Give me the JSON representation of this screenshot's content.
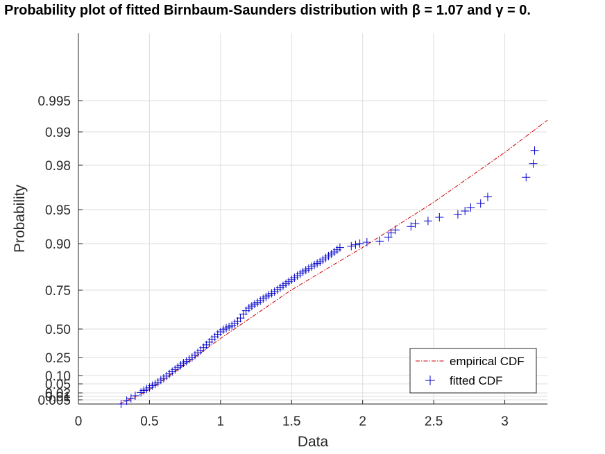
{
  "title": "Probability plot of fitted Birnbaum-Saunders distribution with β = 1.07 and γ = 0.",
  "chart_data": {
    "type": "scatter",
    "title": "Probability plot of fitted Birnbaum-Saunders distribution with β = 1.07 and γ = 0.",
    "xlabel": "Data",
    "ylabel": "Probability",
    "xlim": [
      0,
      3.3
    ],
    "x_ticks": [
      "0",
      "0.5",
      "1",
      "1.5",
      "2",
      "2.5",
      "3"
    ],
    "x_tick_values": [
      0,
      0.5,
      1,
      1.5,
      2,
      2.5,
      3
    ],
    "y_scale": "birnbaum-saunders probability",
    "y_ticks": [
      "0.005",
      "0.01",
      "0.02",
      "0.05",
      "0.10",
      "0.25",
      "0.50",
      "0.75",
      "0.90",
      "0.95",
      "0.98",
      "0.99",
      "0.995"
    ],
    "y_tick_values": [
      0.005,
      0.01,
      0.02,
      0.05,
      0.1,
      0.25,
      0.5,
      0.75,
      0.9,
      0.95,
      0.98,
      0.99,
      0.995
    ],
    "grid": true,
    "legend": "bottom-right",
    "series": [
      {
        "name": "empirical CDF",
        "style": "dash-dot line",
        "color": "#cc0000",
        "x": [
          0.29,
          0.5,
          1.0,
          1.5,
          2.0,
          2.5,
          3.0,
          3.3
        ],
        "y": [
          0.0,
          0.077,
          0.357,
          0.622,
          0.853,
          1.099,
          1.37,
          1.546
        ]
      },
      {
        "name": "fitted CDF",
        "style": "plus markers",
        "color": "#0000cc",
        "x": [
          0.3,
          0.34,
          0.37,
          0.4,
          0.44,
          0.46,
          0.48,
          0.5,
          0.52,
          0.54,
          0.56,
          0.58,
          0.6,
          0.62,
          0.64,
          0.66,
          0.68,
          0.7,
          0.72,
          0.74,
          0.76,
          0.78,
          0.8,
          0.82,
          0.84,
          0.86,
          0.88,
          0.9,
          0.92,
          0.94,
          0.96,
          0.98,
          1.0,
          1.02,
          1.04,
          1.06,
          1.08,
          1.1,
          1.12,
          1.14,
          1.16,
          1.18,
          1.2,
          1.22,
          1.24,
          1.26,
          1.28,
          1.3,
          1.32,
          1.34,
          1.36,
          1.38,
          1.4,
          1.42,
          1.44,
          1.46,
          1.48,
          1.5,
          1.52,
          1.54,
          1.56,
          1.58,
          1.6,
          1.62,
          1.64,
          1.66,
          1.68,
          1.7,
          1.72,
          1.74,
          1.76,
          1.78,
          1.8,
          1.82,
          1.84,
          1.92,
          1.95,
          1.98,
          2.03,
          2.12,
          2.18,
          2.2,
          2.23,
          2.34,
          2.37,
          2.46,
          2.54,
          2.67,
          2.72,
          2.76,
          2.83,
          2.88,
          3.15,
          3.2,
          3.21
        ],
        "y": [
          0.0,
          0.018,
          0.031,
          0.045,
          0.063,
          0.074,
          0.082,
          0.09,
          0.1,
          0.109,
          0.119,
          0.131,
          0.14,
          0.152,
          0.164,
          0.176,
          0.188,
          0.2,
          0.211,
          0.223,
          0.233,
          0.244,
          0.254,
          0.266,
          0.279,
          0.292,
          0.307,
          0.322,
          0.337,
          0.352,
          0.366,
          0.38,
          0.393,
          0.405,
          0.413,
          0.42,
          0.428,
          0.438,
          0.45,
          0.468,
          0.49,
          0.508,
          0.522,
          0.533,
          0.544,
          0.553,
          0.563,
          0.573,
          0.583,
          0.593,
          0.603,
          0.612,
          0.622,
          0.633,
          0.644,
          0.655,
          0.666,
          0.677,
          0.688,
          0.699,
          0.709,
          0.719,
          0.729,
          0.738,
          0.748,
          0.757,
          0.766,
          0.775,
          0.785,
          0.795,
          0.806,
          0.817,
          0.828,
          0.84,
          0.852,
          0.86,
          0.867,
          0.874,
          0.881,
          0.887,
          0.908,
          0.932,
          0.948,
          0.967,
          0.982,
          0.997,
          1.017,
          1.033,
          1.051,
          1.07,
          1.092,
          1.128,
          1.235,
          1.309,
          1.381
        ]
      }
    ]
  }
}
